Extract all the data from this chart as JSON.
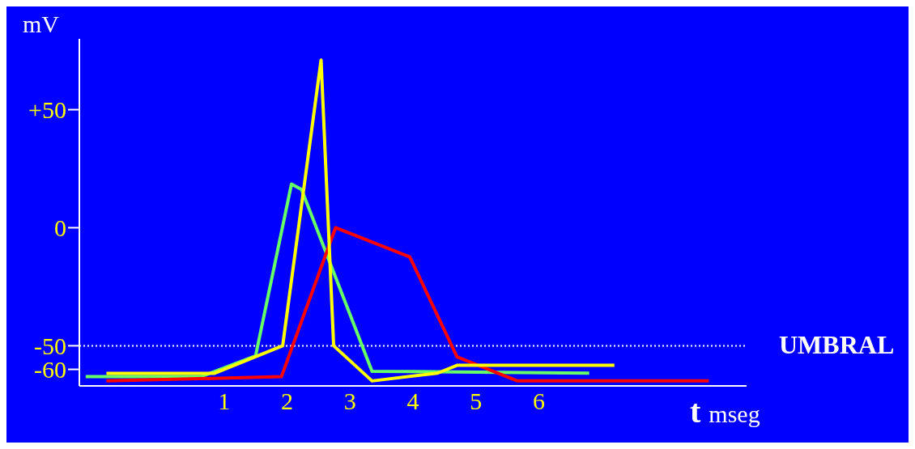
{
  "chart_data": {
    "type": "line",
    "ylabel": "mV",
    "xlabel": "t mseg",
    "xlim": [
      -1.3,
      9.3
    ],
    "xticks": [
      1,
      2,
      3,
      4,
      5,
      6
    ],
    "ylim": [
      -67,
      80
    ],
    "yticks": [
      -60,
      -50,
      0,
      {
        "value": 50,
        "label": "+50"
      }
    ],
    "grid": false,
    "legend": false,
    "marker": "none",
    "line_style": "solid",
    "series": [
      {
        "color": "#66ff66",
        "x": [
          -1.2,
          0.63,
          1.5,
          2.07,
          2.23,
          3.35,
          6.8
        ],
        "values": [
          -63.1,
          -63.1,
          -54.3,
          18.5,
          16.2,
          -60.8,
          -61.6
        ]
      },
      {
        "color": "#ff0000",
        "x": [
          -0.87,
          1.91,
          2.77,
          3.95,
          4.7,
          5.66,
          8.7
        ],
        "values": [
          -64.9,
          -63.1,
          0,
          -12.4,
          -54.7,
          -64.9,
          -64.9
        ]
      },
      {
        "color": "#ffff00",
        "x": [
          -0.87,
          0.84,
          1.93,
          2.54,
          2.74,
          3.35,
          4.39,
          4.7,
          7.2
        ],
        "values": [
          -61.7,
          -61.7,
          -50,
          71,
          -50,
          -64.9,
          -61.6,
          -58.3,
          -58.3
        ]
      }
    ],
    "ref_lines": [
      {
        "axis": "y",
        "value": -50,
        "label": "UMBRAL",
        "color": "#ffffff",
        "line_style": "dotted"
      }
    ]
  }
}
